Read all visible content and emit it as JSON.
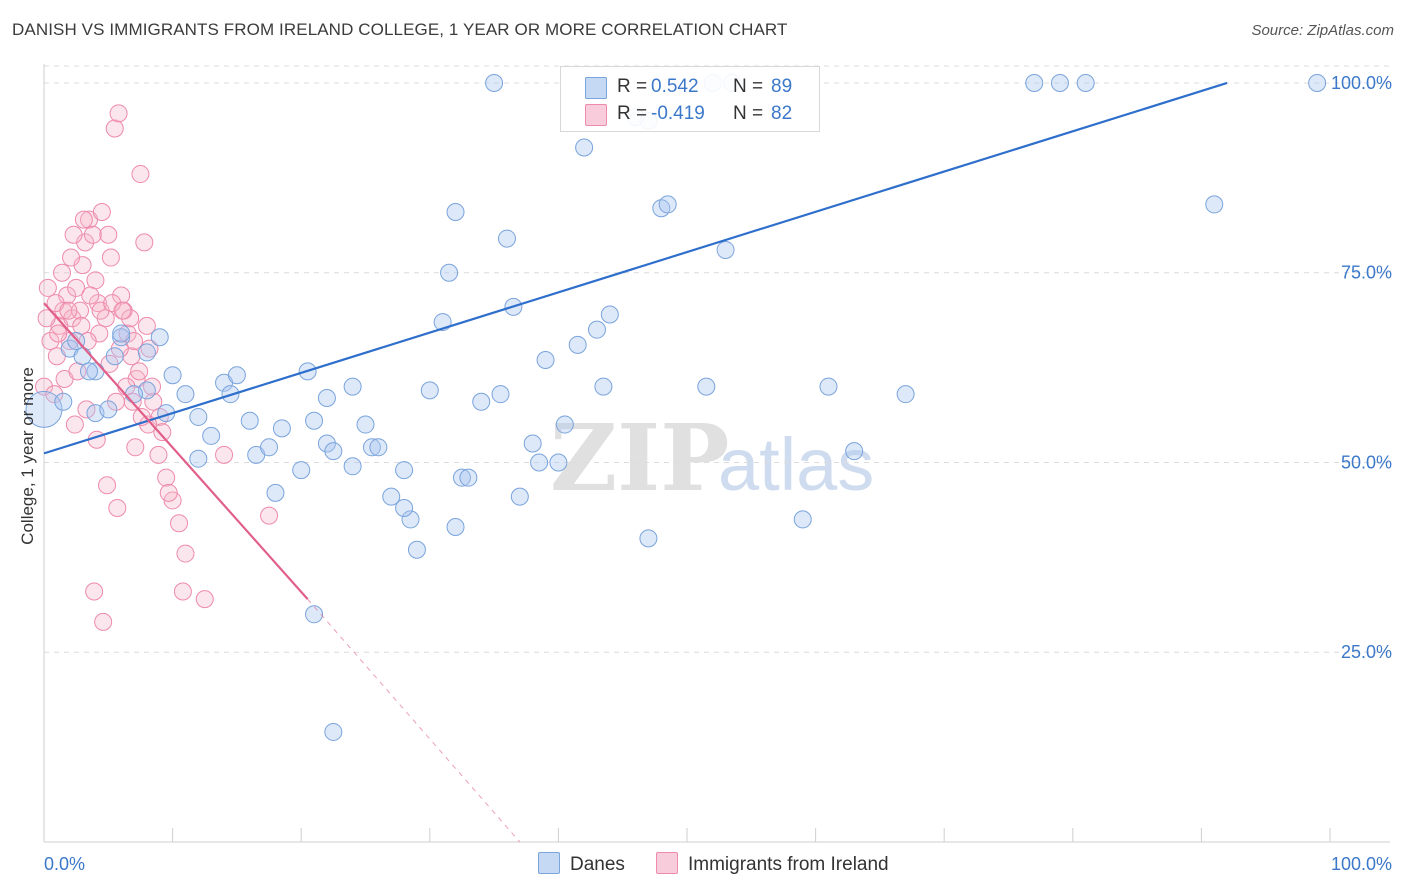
{
  "title": "DANISH VS IMMIGRANTS FROM IRELAND COLLEGE, 1 YEAR OR MORE CORRELATION CHART",
  "source": "Source: ZipAtlas.com",
  "watermark": {
    "zip": "ZIP",
    "atlas": "atlas"
  },
  "legend_top": {
    "danes": {
      "r_label": "R =",
      "r_value": "0.542",
      "n_label": "N =",
      "n_value": "89"
    },
    "ireland": {
      "r_label": "R =",
      "r_value": "-0.419",
      "n_label": "N =",
      "n_value": "82"
    }
  },
  "legend_bottom": {
    "danes": "Danes",
    "ireland": "Immigrants from Ireland"
  },
  "colors": {
    "danes_fill": "#a9c6ef",
    "danes_stroke": "#7aa4dc",
    "danes_line": "#2f6fcc",
    "ireland_fill": "#f6b6cb",
    "ireland_stroke": "#ee8aab",
    "ireland_line": "#e0608a",
    "tick_label": "#3b78c9",
    "grid": "#dcdcdc"
  },
  "chart_data": {
    "type": "scatter",
    "title": "DANISH VS IMMIGRANTS FROM IRELAND COLLEGE, 1 YEAR OR MORE CORRELATION CHART",
    "xlabel": "",
    "ylabel": "College, 1 year or more",
    "xlim": [
      0,
      100
    ],
    "ylim": [
      0,
      102.5
    ],
    "x_tick_labels": [
      "0.0%",
      "100.0%"
    ],
    "y_tick_labels": [
      "25.0%",
      "50.0%",
      "75.0%",
      "100.0%"
    ],
    "y_ticks": [
      25,
      50,
      75,
      100
    ],
    "grid": "horizontal dashed",
    "legend_position": "top-center",
    "series": [
      {
        "name": "Danes",
        "r": 0.542,
        "n": 89,
        "trend": {
          "x": [
            0,
            92
          ],
          "y": [
            51.2,
            100
          ]
        },
        "points": [
          [
            0,
            57
          ],
          [
            2,
            65
          ],
          [
            3,
            64
          ],
          [
            4,
            62
          ],
          [
            4,
            56.5
          ],
          [
            5,
            57
          ],
          [
            6,
            66.5
          ],
          [
            6,
            67
          ],
          [
            5.5,
            64
          ],
          [
            3.5,
            62
          ],
          [
            8,
            64.5
          ],
          [
            9,
            66.5
          ],
          [
            8,
            59.5
          ],
          [
            9.5,
            56.5
          ],
          [
            10,
            61.5
          ],
          [
            11,
            59
          ],
          [
            12,
            56
          ],
          [
            12,
            50.5
          ],
          [
            13,
            53.5
          ],
          [
            14,
            60.5
          ],
          [
            14.5,
            59
          ],
          [
            15,
            61.5
          ],
          [
            16,
            55.5
          ],
          [
            16.5,
            51
          ],
          [
            17.5,
            52
          ],
          [
            18,
            46
          ],
          [
            18.5,
            54.5
          ],
          [
            20,
            49
          ],
          [
            20.5,
            62
          ],
          [
            21,
            55.5
          ],
          [
            22,
            52.5
          ],
          [
            22.5,
            51.5
          ],
          [
            22,
            58.5
          ],
          [
            24,
            49.5
          ],
          [
            25,
            55
          ],
          [
            25.5,
            52
          ],
          [
            24,
            60
          ],
          [
            26,
            52
          ],
          [
            27,
            45.5
          ],
          [
            28,
            49
          ],
          [
            28.5,
            42.5
          ],
          [
            28,
            44
          ],
          [
            29,
            38.5
          ],
          [
            30,
            59.5
          ],
          [
            31,
            68.5
          ],
          [
            31.5,
            75
          ],
          [
            32,
            41.5
          ],
          [
            32.5,
            48
          ],
          [
            32,
            83
          ],
          [
            33,
            48
          ],
          [
            34,
            58
          ],
          [
            35,
            100
          ],
          [
            35.5,
            59
          ],
          [
            36,
            79.5
          ],
          [
            36.5,
            70.5
          ],
          [
            37,
            45.5
          ],
          [
            38,
            52.5
          ],
          [
            38.5,
            50
          ],
          [
            39,
            63.5
          ],
          [
            40,
            50
          ],
          [
            40.5,
            55
          ],
          [
            41.5,
            65.5
          ],
          [
            42,
            91.5
          ],
          [
            43,
            67.5
          ],
          [
            43.5,
            60
          ],
          [
            44,
            69.5
          ],
          [
            46,
            95.5
          ],
          [
            47,
            95
          ],
          [
            47,
            40
          ],
          [
            48,
            83.5
          ],
          [
            48.5,
            84
          ],
          [
            51.5,
            60
          ],
          [
            52,
            100
          ],
          [
            53,
            78
          ],
          [
            53.5,
            100
          ],
          [
            59,
            42.5
          ],
          [
            61,
            60
          ],
          [
            63,
            51.5
          ],
          [
            67,
            59
          ],
          [
            77,
            100
          ],
          [
            79,
            100
          ],
          [
            81,
            100
          ],
          [
            91,
            84
          ],
          [
            99,
            100
          ],
          [
            21,
            30
          ],
          [
            22.5,
            14.5
          ],
          [
            1.5,
            58
          ],
          [
            2.5,
            66
          ],
          [
            7,
            59
          ]
        ]
      },
      {
        "name": "Immigrants from Ireland",
        "r": -0.419,
        "n": 82,
        "trend": {
          "x": [
            0,
            20.5
          ],
          "y": [
            71,
            32
          ],
          "dashed_to": {
            "x": 37,
            "y": 0
          }
        },
        "points": [
          [
            0,
            60
          ],
          [
            0.5,
            66
          ],
          [
            1,
            64
          ],
          [
            1.2,
            68
          ],
          [
            1.5,
            70
          ],
          [
            1.8,
            72
          ],
          [
            2,
            66
          ],
          [
            2.2,
            69
          ],
          [
            2.5,
            73
          ],
          [
            2.8,
            70
          ],
          [
            3,
            76
          ],
          [
            3.2,
            79
          ],
          [
            3.5,
            82
          ],
          [
            3.8,
            80
          ],
          [
            4,
            74
          ],
          [
            4.2,
            71
          ],
          [
            4.5,
            83
          ],
          [
            4.8,
            69
          ],
          [
            5,
            80
          ],
          [
            5.2,
            77
          ],
          [
            5.5,
            94
          ],
          [
            5.8,
            96
          ],
          [
            6,
            72
          ],
          [
            6.2,
            70
          ],
          [
            6.5,
            67
          ],
          [
            6.8,
            64
          ],
          [
            7,
            66
          ],
          [
            7.2,
            61
          ],
          [
            7.5,
            88
          ],
          [
            7.8,
            79
          ],
          [
            8,
            68
          ],
          [
            8.2,
            65
          ],
          [
            8.5,
            58
          ],
          [
            9,
            56
          ],
          [
            9.5,
            48
          ],
          [
            10,
            45
          ],
          [
            10.5,
            42
          ],
          [
            11,
            38
          ],
          [
            0.8,
            59
          ],
          [
            1.6,
            61
          ],
          [
            2.4,
            55
          ],
          [
            3.3,
            57
          ],
          [
            4.1,
            53
          ],
          [
            4.9,
            47
          ],
          [
            5.7,
            44
          ],
          [
            6.4,
            60
          ],
          [
            7.1,
            52
          ],
          [
            0.3,
            73
          ],
          [
            0.9,
            71
          ],
          [
            1.4,
            75
          ],
          [
            2.1,
            77
          ],
          [
            2.9,
            68
          ],
          [
            3.6,
            72
          ],
          [
            4.3,
            67
          ],
          [
            5.1,
            63
          ],
          [
            5.9,
            65
          ],
          [
            6.7,
            69
          ],
          [
            7.4,
            62
          ],
          [
            8.1,
            55
          ],
          [
            8.9,
            51
          ],
          [
            9.7,
            46
          ],
          [
            10.8,
            33
          ],
          [
            3.9,
            33
          ],
          [
            4.6,
            29
          ],
          [
            12.5,
            32
          ],
          [
            17.5,
            43
          ],
          [
            14,
            51
          ],
          [
            0.2,
            69
          ],
          [
            1.1,
            67
          ],
          [
            1.9,
            70
          ],
          [
            2.6,
            62
          ],
          [
            3.4,
            66
          ],
          [
            4.4,
            70
          ],
          [
            5.3,
            71
          ],
          [
            6.1,
            70
          ],
          [
            6.9,
            58
          ],
          [
            7.6,
            56
          ],
          [
            8.4,
            60
          ],
          [
            9.2,
            54
          ],
          [
            2.3,
            80
          ],
          [
            3.1,
            82
          ],
          [
            5.6,
            58
          ]
        ]
      }
    ]
  }
}
